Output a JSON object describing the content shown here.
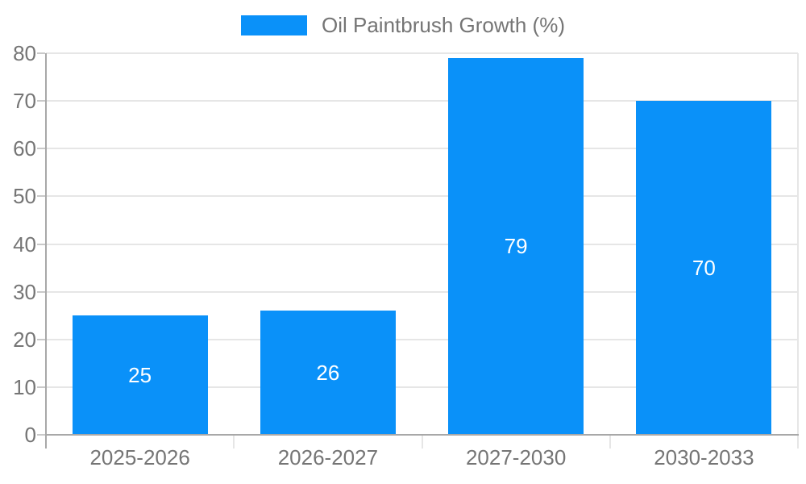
{
  "chart_data": {
    "type": "bar",
    "title": "",
    "legend": "Oil Paintbrush Growth (%)",
    "legend_position": "top-center",
    "categories": [
      "2025-2026",
      "2026-2027",
      "2027-2030",
      "2030-2033"
    ],
    "values": [
      25,
      26,
      79,
      70
    ],
    "value_labels_inside_bars": true,
    "xlabel": "",
    "ylabel": "",
    "ylim": [
      0,
      80
    ],
    "yticks": [
      0,
      10,
      20,
      30,
      40,
      50,
      60,
      70,
      80
    ],
    "grid": true,
    "bar_width_fraction": 0.72,
    "colors": {
      "bar": "#0a91f9",
      "bar_value_label": "#ffffff",
      "axis_text": "#757575",
      "gridline": "#e6e6e6",
      "axis_line": "#a8a8a8",
      "tick": "#c9c9c9",
      "background": "#ffffff"
    }
  }
}
